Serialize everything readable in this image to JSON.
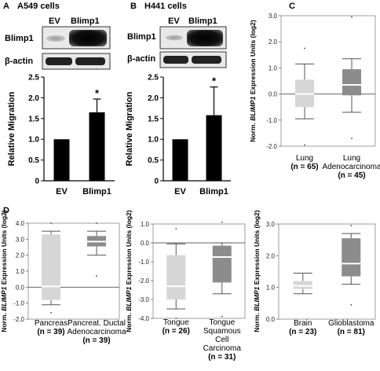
{
  "panel_a": {
    "letter": "A",
    "title": "A549 cells",
    "blot_lanes": [
      "EV",
      "Blimp1"
    ],
    "blot_rows": [
      "Blimp1",
      "β-actin"
    ]
  },
  "panel_b": {
    "letter": "B",
    "title": "H441 cells",
    "blot_lanes": [
      "EV",
      "Blimp1"
    ],
    "blot_rows": [
      "Blimp1",
      "β-actin"
    ]
  },
  "panel_c": {
    "letter": "C"
  },
  "panel_d": {
    "letter": "D"
  },
  "chart_data": [
    {
      "id": "A-bar",
      "type": "bar",
      "categories": [
        "EV",
        "Blimp1"
      ],
      "values": [
        1.0,
        1.65
      ],
      "errors": [
        0,
        0.32
      ],
      "significance": [
        "",
        "*"
      ],
      "ylabel": "Relative Migration",
      "ylim": [
        0,
        2.5
      ],
      "yticks": [
        "0",
        "0.5",
        "1.0",
        "1.5",
        "2.0",
        "2.5"
      ]
    },
    {
      "id": "B-bar",
      "type": "bar",
      "categories": [
        "EV",
        "Blimp1"
      ],
      "values": [
        1.0,
        1.58
      ],
      "errors": [
        0,
        0.68
      ],
      "significance": [
        "",
        "*"
      ],
      "ylabel": "Relative Migration",
      "ylim": [
        0,
        2.5
      ],
      "yticks": [
        "0",
        "0.5",
        "1.0",
        "1.5",
        "2.0",
        "2.5"
      ]
    },
    {
      "id": "C-box",
      "type": "box",
      "ylabel_prefix": "Norm. ",
      "ylabel_gene": "BLIMP1",
      "ylabel_suffix": " Expression Units (log2)",
      "ylim": [
        -2,
        3
      ],
      "yticks": [
        "-2.0",
        "-1.0",
        "0.0",
        "1.0",
        "2.0",
        "3.0"
      ],
      "ytick_values": [
        -2,
        -1,
        0,
        1,
        2,
        3
      ],
      "boxes": [
        {
          "label_lines": [
            "Lung",
            "(n = 65)"
          ],
          "whisker_low": -0.95,
          "q1": -0.5,
          "median": 0.0,
          "q3": 0.55,
          "whisker_high": 1.15,
          "outliers": [
            1.75,
            -1.95
          ],
          "color": "#d6d6d6"
        },
        {
          "label_lines": [
            "Lung",
            "Adenocarcinoma",
            "(n = 45)"
          ],
          "whisker_low": -0.7,
          "q1": -0.05,
          "median": 0.35,
          "q3": 0.95,
          "whisker_high": 1.35,
          "outliers": [
            2.95,
            -1.7
          ],
          "color": "#8c8c8c"
        }
      ]
    },
    {
      "id": "D1-box",
      "type": "box",
      "ylabel_prefix": "Norm. ",
      "ylabel_gene": "BLIMP1",
      "ylabel_suffix": " Expression Units (log2)",
      "ylim": [
        -2,
        4
      ],
      "yticks": [
        "-2.0",
        "-1.0",
        "0.0",
        "1.0",
        "2.0",
        "3.0",
        "4.0"
      ],
      "ytick_values": [
        -2,
        -1,
        0,
        1,
        2,
        3,
        4
      ],
      "boxes": [
        {
          "label_lines": [
            "Pancreas",
            "(n = 39)"
          ],
          "whisker_low": -1.1,
          "q1": -0.8,
          "median": 0.05,
          "q3": 3.3,
          "whisker_high": 3.5,
          "outliers": [
            4.0,
            -1.6
          ],
          "color": "#d6d6d6"
        },
        {
          "label_lines": [
            "Pancreat. Ductal",
            "Adenocarcinoma",
            "(n = 39)"
          ],
          "whisker_low": 2.0,
          "q1": 2.55,
          "median": 2.85,
          "q3": 3.2,
          "whisker_high": 3.5,
          "outliers": [
            4.0,
            0.7
          ],
          "color": "#8c8c8c"
        }
      ]
    },
    {
      "id": "D2-box",
      "type": "box",
      "ylabel_prefix": "Norm. ",
      "ylabel_gene": "BLIMP1",
      "ylabel_suffix": " Expression Units (log2)",
      "ylim": [
        -4,
        1
      ],
      "yticks": [
        "-4.0",
        "-3.0",
        "-2.0",
        "-1.0",
        "0.0",
        "1.0"
      ],
      "ytick_values": [
        -4,
        -3,
        -2,
        -1,
        0,
        1
      ],
      "boxes": [
        {
          "label_lines": [
            "Tongue",
            "(n = 26)"
          ],
          "whisker_low": -3.5,
          "q1": -3.0,
          "median": -2.3,
          "q3": -0.65,
          "whisker_high": -0.05,
          "outliers": [
            0.75,
            -4.0
          ],
          "color": "#d6d6d6"
        },
        {
          "label_lines": [
            "Tongue",
            "Squamous",
            "Cell",
            "Carcinoma",
            "(n = 31)"
          ],
          "whisker_low": -2.7,
          "q1": -2.1,
          "median": -0.75,
          "q3": -0.15,
          "whisker_high": 0.0,
          "outliers": [
            1.1,
            -3.9
          ],
          "color": "#8c8c8c"
        }
      ]
    },
    {
      "id": "D3-box",
      "type": "box",
      "ylabel_prefix": "Norm. ",
      "ylabel_gene": "BLIMP1",
      "ylabel_suffix": " Expression Units (log2)",
      "ylim": [
        0,
        3
      ],
      "yticks": [
        "0.0",
        "1.0",
        "2.0",
        "3.0"
      ],
      "ytick_values": [
        0,
        1,
        2,
        3
      ],
      "boxes": [
        {
          "label_lines": [
            "Brain",
            "(n = 23)"
          ],
          "whisker_low": 0.8,
          "q1": 0.95,
          "median": 1.05,
          "q3": 1.2,
          "whisker_high": 1.45,
          "outliers": [],
          "color": "#d6d6d6"
        },
        {
          "label_lines": [
            "Glioblastoma",
            "(n = 81)"
          ],
          "whisker_low": 1.1,
          "q1": 1.35,
          "median": 1.75,
          "q3": 2.55,
          "whisker_high": 2.7,
          "outliers": [
            2.95,
            0.45
          ],
          "color": "#8c8c8c"
        }
      ]
    }
  ]
}
